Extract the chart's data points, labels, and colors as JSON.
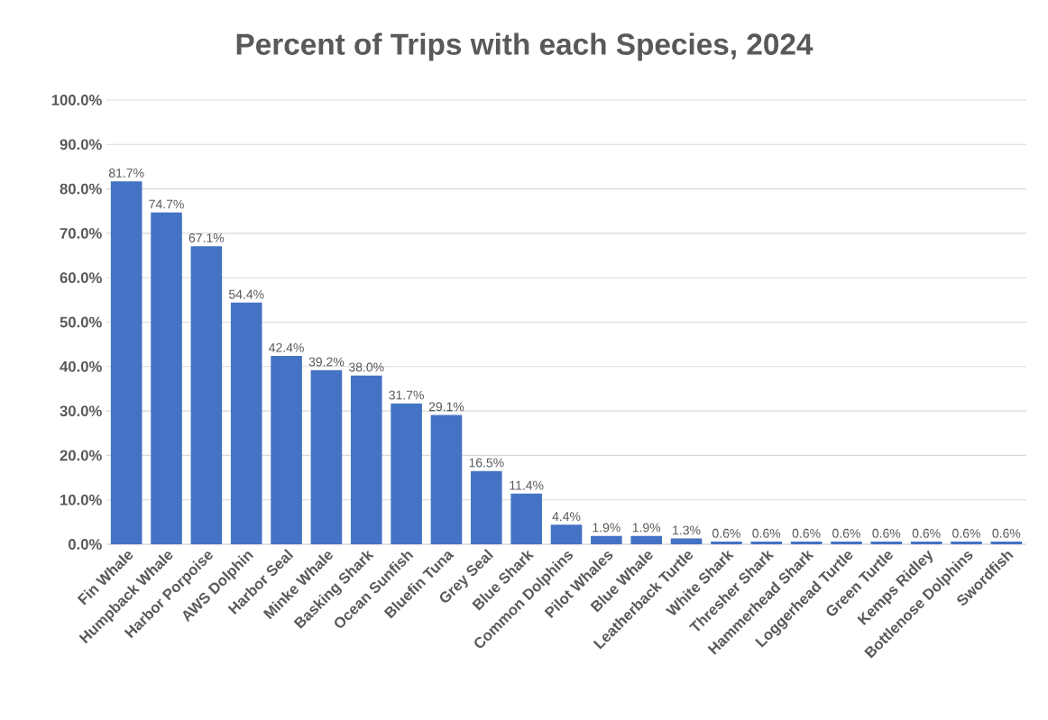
{
  "chart_data": {
    "type": "bar",
    "title": "Percent of Trips with each Species, 2024",
    "categories": [
      "Fin Whale",
      "Humpback Whale",
      "Harbor Porpoise",
      "AWS Dolphin",
      "Harbor Seal",
      "Minke Whale",
      "Basking Shark",
      "Ocean Sunfish",
      "Bluefin Tuna",
      "Grey Seal",
      "Blue Shark",
      "Common Dolphins",
      "Pilot Whales",
      "Blue Whale",
      "Leatherback Turtle",
      "White Shark",
      "Thresher Shark",
      "Hammerhead Shark",
      "Loggerhead Turtle",
      "Green Turtle",
      "Kemps Ridley",
      "Bottlenose Dolphins",
      "Swordfish"
    ],
    "values": [
      81.7,
      74.7,
      67.1,
      54.4,
      42.4,
      39.2,
      38.0,
      31.7,
      29.1,
      16.5,
      11.4,
      4.4,
      1.9,
      1.9,
      1.3,
      0.6,
      0.6,
      0.6,
      0.6,
      0.6,
      0.6,
      0.6,
      0.6
    ],
    "value_labels": [
      "81.7%",
      "74.7%",
      "67.1%",
      "54.4%",
      "42.4%",
      "39.2%",
      "38.0%",
      "31.7%",
      "29.1%",
      "16.5%",
      "11.4%",
      "4.4%",
      "1.9%",
      "1.9%",
      "1.3%",
      "0.6%",
      "0.6%",
      "0.6%",
      "0.6%",
      "0.6%",
      "0.6%",
      "0.6%",
      "0.6%"
    ],
    "color": "#4472c4",
    "ylim": [
      0,
      100
    ],
    "yticks": [
      {
        "value": 0,
        "label": "0.0%"
      },
      {
        "value": 10,
        "label": "10.0%"
      },
      {
        "value": 20,
        "label": "20.0%"
      },
      {
        "value": 30,
        "label": "30.0%"
      },
      {
        "value": 40,
        "label": "40.0%"
      },
      {
        "value": 50,
        "label": "50.0%"
      },
      {
        "value": 60,
        "label": "60.0%"
      },
      {
        "value": 70,
        "label": "70.0%"
      },
      {
        "value": 80,
        "label": "80.0%"
      },
      {
        "value": 90,
        "label": "90.0%"
      },
      {
        "value": 100,
        "label": "100.0%"
      }
    ],
    "grid": "y"
  }
}
